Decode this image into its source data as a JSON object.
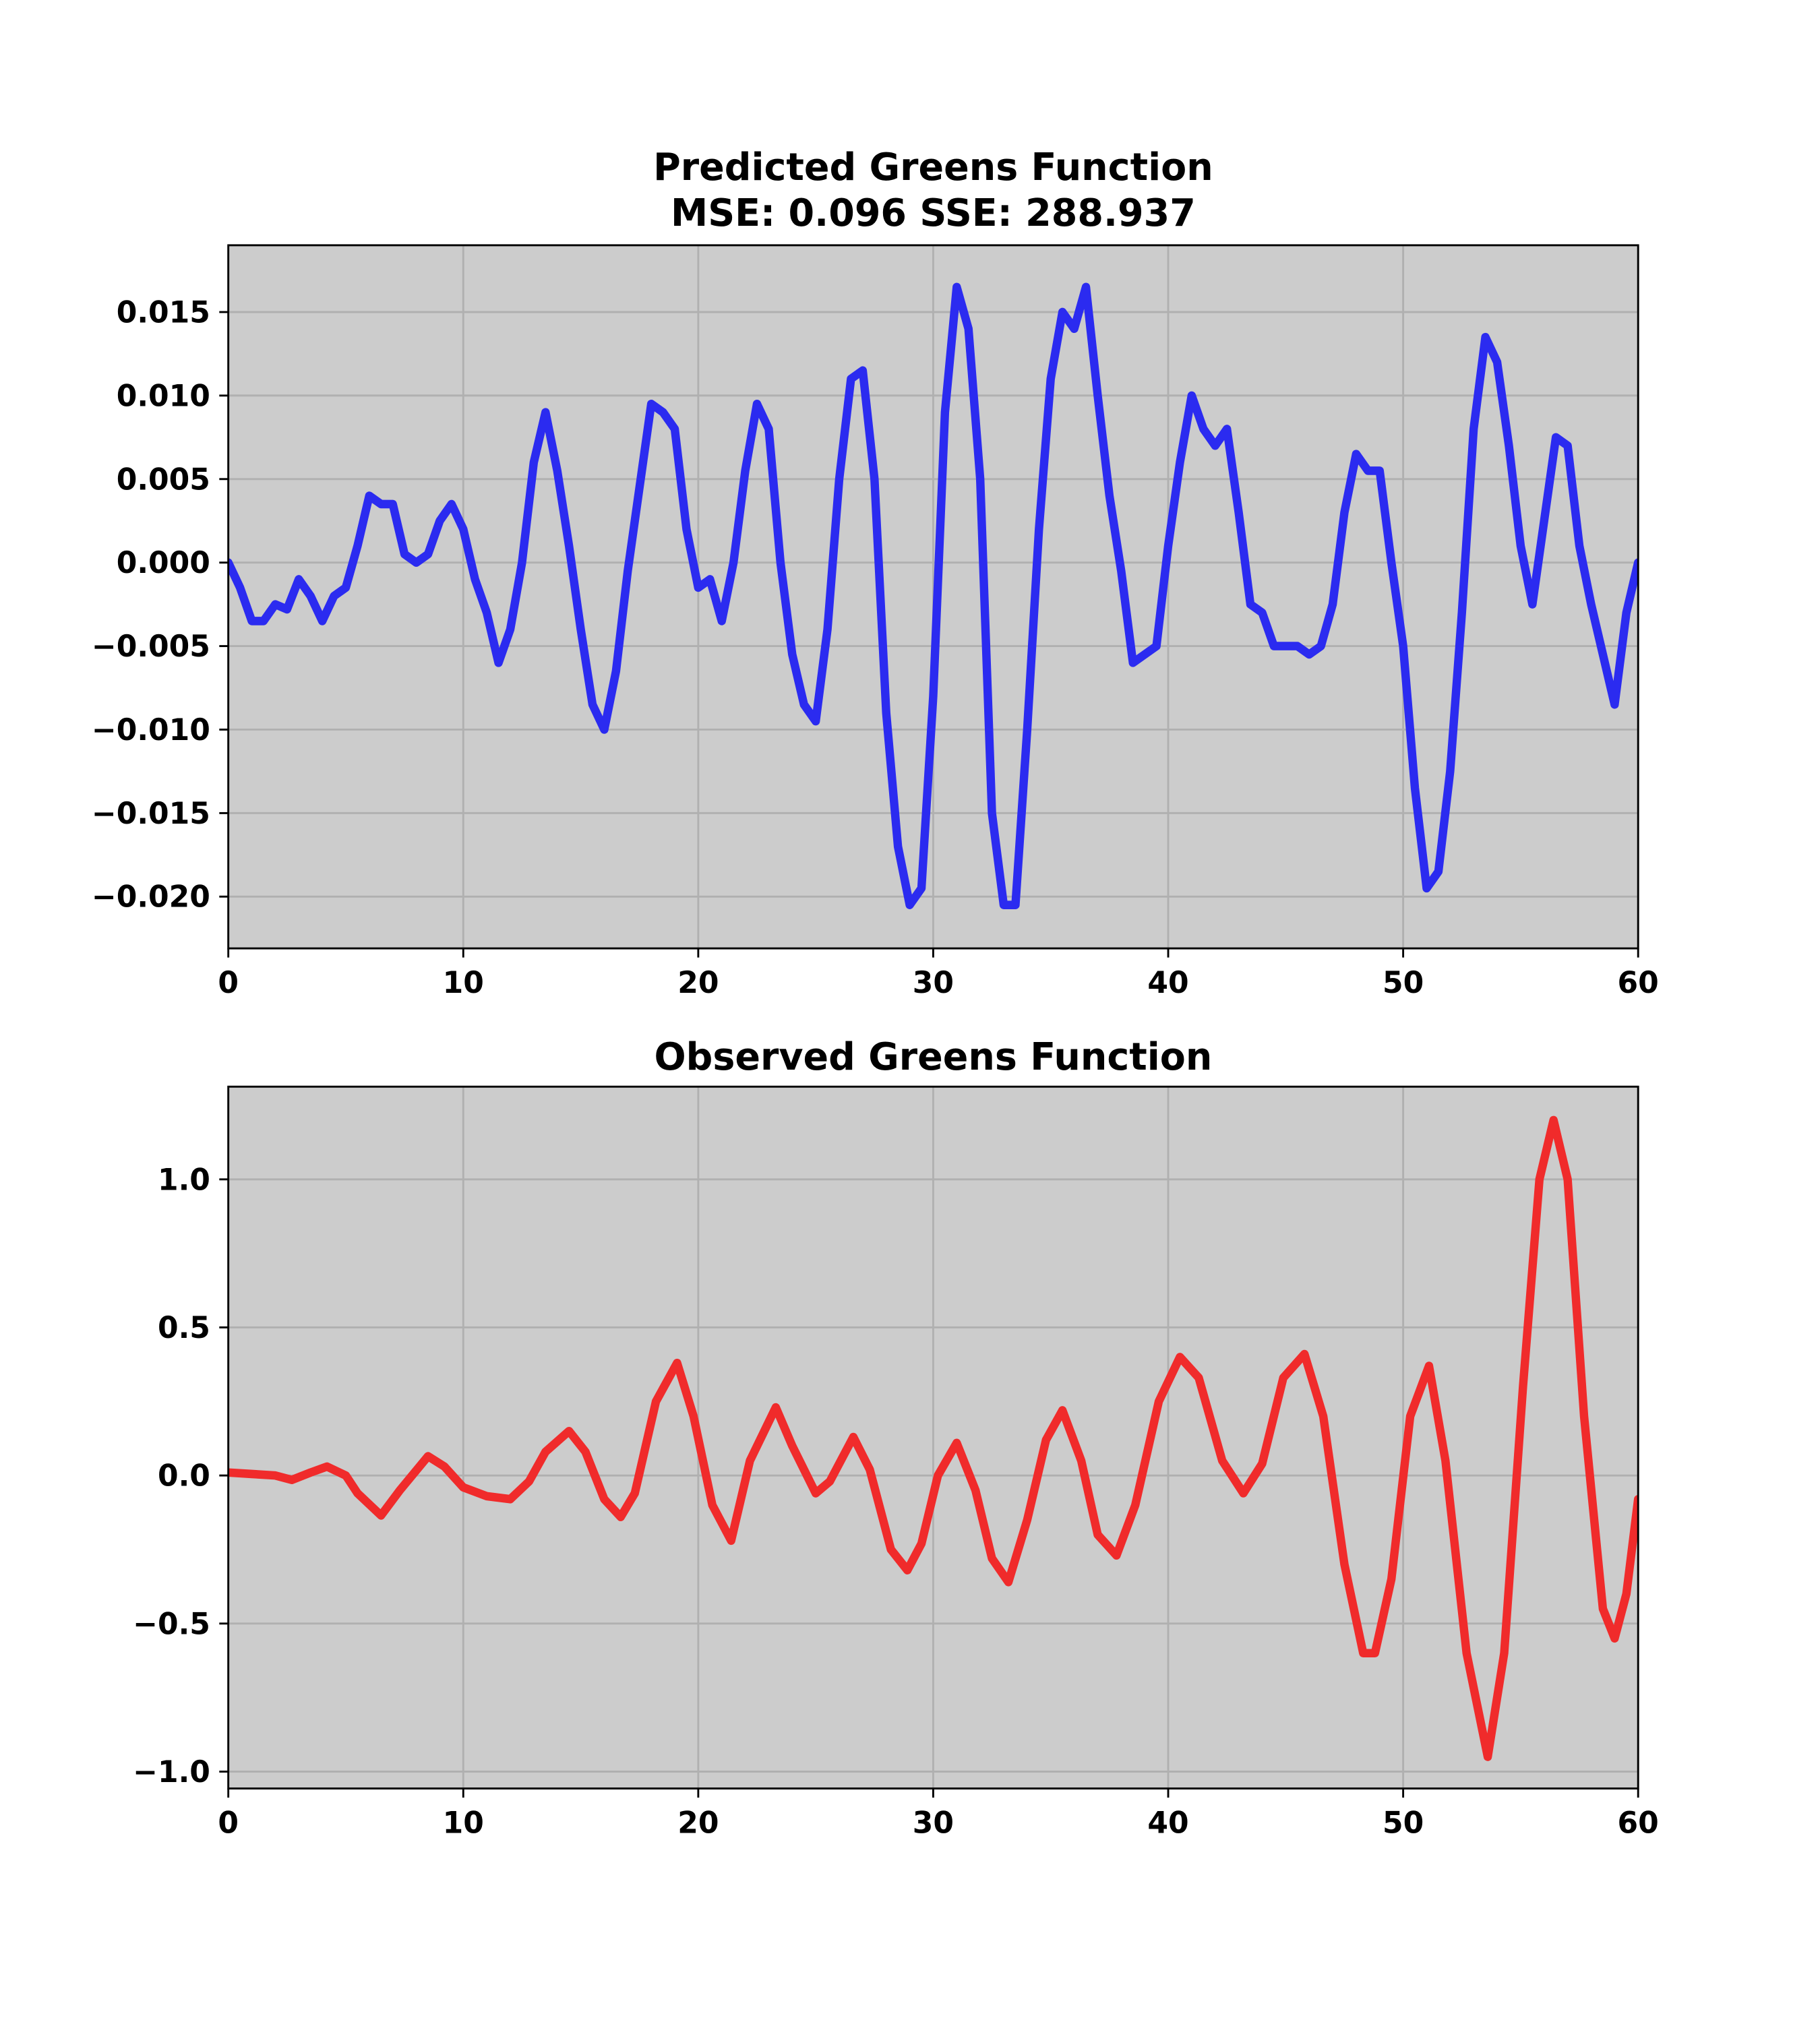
{
  "chart_data": [
    {
      "type": "line",
      "title": "Predicted Greens Function",
      "subtitle": "MSE: 0.096 SSE: 288.937",
      "x": [
        0,
        0.5,
        1,
        1.5,
        2,
        2.5,
        3,
        3.5,
        4,
        4.5,
        5,
        5.5,
        6,
        6.5,
        7,
        7.5,
        8,
        8.5,
        9,
        9.5,
        10,
        10.5,
        11,
        11.5,
        12,
        12.5,
        13,
        13.5,
        14,
        14.5,
        15,
        15.5,
        16,
        16.5,
        17,
        17.5,
        18,
        18.5,
        19,
        19.5,
        20,
        20.5,
        21,
        21.5,
        22,
        22.5,
        23,
        23.5,
        24,
        24.5,
        25,
        25.5,
        26,
        26.5,
        27,
        27.5,
        28,
        28.5,
        29,
        29.5,
        30,
        30.5,
        31,
        31.5,
        32,
        32.5,
        33,
        33.5,
        34,
        34.5,
        35,
        35.5,
        36,
        36.5,
        37,
        37.5,
        38,
        38.5,
        39,
        39.5,
        40,
        40.5,
        41,
        41.5,
        42,
        42.5,
        43,
        43.5,
        44,
        44.5,
        45,
        45.5,
        46,
        46.5,
        47,
        47.5,
        48,
        48.5,
        49,
        49.5,
        50,
        50.5,
        51,
        51.5,
        52,
        52.5,
        53,
        53.5,
        54,
        54.5,
        55,
        55.5,
        56,
        56.5,
        57,
        57.5,
        58,
        58.5,
        59,
        59.5,
        60
      ],
      "series": [
        {
          "color": "#2b2bf0",
          "values": [
            0,
            -0.0015,
            -0.0035,
            -0.0035,
            -0.0025,
            -0.0028,
            -0.001,
            -0.002,
            -0.0035,
            -0.002,
            -0.0015,
            0.001,
            0.004,
            0.0035,
            0.0035,
            0.0005,
            0,
            0.0005,
            0.0025,
            0.0035,
            0.002,
            -0.001,
            -0.003,
            -0.006,
            -0.004,
            0,
            0.006,
            0.009,
            0.0055,
            0.001,
            -0.004,
            -0.0085,
            -0.01,
            -0.0065,
            -0.0005,
            0.0045,
            0.0095,
            0.009,
            0.008,
            0.002,
            -0.0015,
            -0.001,
            -0.0035,
            0,
            0.0055,
            0.0095,
            0.008,
            0,
            -0.0055,
            -0.0085,
            -0.0095,
            -0.004,
            0.005,
            0.011,
            0.0115,
            0.005,
            -0.009,
            -0.017,
            -0.0205,
            -0.0195,
            -0.008,
            0.009,
            0.0165,
            0.014,
            0.005,
            -0.015,
            -0.0205,
            -0.0205,
            -0.01,
            0.002,
            0.011,
            0.015,
            0.014,
            0.0165,
            0.01,
            0.004,
            -0.0005,
            -0.006,
            -0.0055,
            -0.005,
            0.001,
            0.006,
            0.01,
            0.008,
            0.007,
            0.008,
            0.003,
            -0.0025,
            -0.003,
            -0.005,
            -0.005,
            -0.005,
            -0.0055,
            -0.005,
            -0.0025,
            0.003,
            0.0065,
            0.0055,
            0.0055,
            0,
            -0.005,
            -0.0135,
            -0.0195,
            -0.0185,
            -0.0125,
            -0.003,
            0.008,
            0.0135,
            0.012,
            0.007,
            0.001,
            -0.0025,
            0.0025,
            0.0075,
            0.007,
            0.001,
            -0.0025,
            -0.0055,
            -0.0085,
            -0.003,
            0
          ]
        }
      ],
      "xlim": [
        0,
        60
      ],
      "xticks": [
        0,
        10,
        20,
        30,
        40,
        50,
        60
      ],
      "ylim": [
        -0.0231,
        0.019
      ],
      "yticks": [
        {
          "value": -0.02,
          "label": "−0.020"
        },
        {
          "value": -0.015,
          "label": "−0.015"
        },
        {
          "value": -0.01,
          "label": "−0.010"
        },
        {
          "value": -0.005,
          "label": "−0.005"
        },
        {
          "value": 0,
          "label": "0.000"
        },
        {
          "value": 0.005,
          "label": "0.005"
        },
        {
          "value": 0.01,
          "label": "0.010"
        },
        {
          "value": 0.015,
          "label": "0.015"
        }
      ],
      "grid": true
    },
    {
      "type": "line",
      "title": "Observed Greens Function",
      "x": [
        0,
        1,
        2,
        2.7,
        3.5,
        4.2,
        5,
        5.5,
        6.5,
        7.3,
        8.5,
        9.2,
        10,
        11,
        12,
        12.8,
        13.5,
        14.5,
        15.2,
        16,
        16.7,
        17.3,
        18.2,
        19.1,
        19.8,
        20.6,
        21.4,
        22.2,
        23.3,
        24,
        25,
        25.6,
        26.6,
        27.3,
        28.2,
        28.9,
        29.5,
        30.2,
        31,
        31.8,
        32.5,
        33.2,
        34,
        34.8,
        35.5,
        36.3,
        37,
        37.8,
        38.6,
        39.6,
        40.5,
        41.3,
        42.3,
        43.2,
        44,
        44.9,
        45.8,
        46.6,
        47.5,
        48.3,
        48.8,
        49.5,
        50.3,
        51.1,
        51.8,
        52.7,
        53.6,
        54.3,
        55.1,
        55.8,
        56.4,
        57,
        57.7,
        58.5,
        59,
        59.5,
        60
      ],
      "series": [
        {
          "color": "#f02b2b",
          "values": [
            0.01,
            0.005,
            0,
            -0.015,
            0.01,
            0.03,
            0,
            -0.06,
            -0.135,
            -0.05,
            0.065,
            0.03,
            -0.04,
            -0.07,
            -0.08,
            -0.02,
            0.08,
            0.15,
            0.08,
            -0.08,
            -0.14,
            -0.06,
            0.25,
            0.38,
            0.2,
            -0.1,
            -0.22,
            0.05,
            0.23,
            0.1,
            -0.06,
            -0.02,
            0.13,
            0.02,
            -0.25,
            -0.32,
            -0.23,
            0,
            0.11,
            -0.05,
            -0.28,
            -0.36,
            -0.15,
            0.12,
            0.22,
            0.05,
            -0.2,
            -0.27,
            -0.1,
            0.25,
            0.4,
            0.33,
            0.05,
            -0.06,
            0.04,
            0.33,
            0.41,
            0.2,
            -0.3,
            -0.6,
            -0.6,
            -0.35,
            0.2,
            0.37,
            0.05,
            -0.6,
            -0.95,
            -0.6,
            0.3,
            1.0,
            1.2,
            1.0,
            0.2,
            -0.45,
            -0.55,
            -0.4,
            -0.08
          ]
        }
      ],
      "xlim": [
        0,
        60
      ],
      "xticks": [
        0,
        10,
        20,
        30,
        40,
        50,
        60
      ],
      "ylim": [
        -1.057,
        1.313
      ],
      "yticks": [
        {
          "value": -1,
          "label": "−1.0"
        },
        {
          "value": -0.5,
          "label": "−0.5"
        },
        {
          "value": 0,
          "label": "0.0"
        },
        {
          "value": 0.5,
          "label": "0.5"
        },
        {
          "value": 1,
          "label": "1.0"
        }
      ],
      "grid": true
    }
  ]
}
